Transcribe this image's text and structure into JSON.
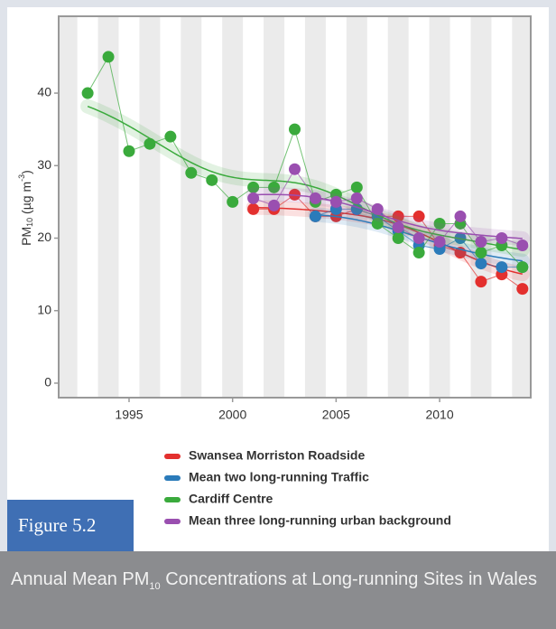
{
  "figure_label": "Figure 5.2",
  "caption_parts": [
    "Annual Mean PM",
    "10",
    " Concentrations at Long-running Sites in Wales"
  ],
  "chart_data": {
    "type": "scatter-line",
    "ylabel_parts": [
      "PM",
      "10",
      " (µg m",
      "-3",
      ")"
    ],
    "x": [
      1993,
      1994,
      1995,
      1996,
      1997,
      1998,
      1999,
      2000,
      2001,
      2002,
      2003,
      2004,
      2005,
      2006,
      2007,
      2008,
      2009,
      2010,
      2011,
      2012,
      2013,
      2014
    ],
    "series": [
      {
        "name": "Swansea Morriston Roadside",
        "color": "#e3302e",
        "values": [
          null,
          null,
          null,
          null,
          null,
          null,
          null,
          null,
          24,
          24,
          26,
          23,
          23,
          24,
          23,
          23,
          23,
          19,
          18,
          14,
          15,
          13
        ]
      },
      {
        "name": "Mean two long-running Traffic",
        "color": "#2b7bba",
        "values": [
          null,
          null,
          null,
          null,
          null,
          null,
          null,
          null,
          null,
          null,
          null,
          23,
          24,
          24,
          23,
          21,
          19,
          18.5,
          20,
          16.5,
          16,
          16
        ]
      },
      {
        "name": "Cardiff Centre",
        "color": "#3aaa3c",
        "values": [
          40,
          45,
          32,
          33,
          34,
          29,
          28,
          25,
          27,
          27,
          35,
          25,
          26,
          27,
          22,
          20,
          18,
          22,
          22,
          18,
          19,
          16
        ]
      },
      {
        "name": "Mean three long-running urban background",
        "color": "#9a4fb0",
        "values": [
          null,
          null,
          null,
          null,
          null,
          null,
          null,
          null,
          25.5,
          24.5,
          29.5,
          25.5,
          25,
          25.5,
          24,
          21.5,
          20,
          19.5,
          23,
          19.5,
          20,
          19
        ]
      }
    ],
    "xlim": [
      1991.6,
      2014.4
    ],
    "ylim": [
      -2,
      50.6
    ],
    "xticks": [
      1995,
      2000,
      2005,
      2010
    ],
    "yticks": [
      0,
      10,
      20,
      30,
      40
    ],
    "background_stripes": true
  }
}
